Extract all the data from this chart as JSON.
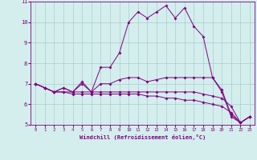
{
  "x": [
    0,
    1,
    2,
    3,
    4,
    5,
    6,
    7,
    8,
    9,
    10,
    11,
    12,
    13,
    14,
    15,
    16,
    17,
    18,
    19,
    20,
    21,
    22,
    23
  ],
  "line1": [
    7.0,
    6.8,
    6.6,
    6.8,
    6.6,
    7.1,
    6.6,
    7.8,
    7.8,
    8.5,
    10.0,
    10.5,
    10.2,
    10.5,
    10.8,
    10.2,
    10.7,
    9.8,
    9.3,
    7.3,
    6.6,
    5.4,
    5.1,
    5.4
  ],
  "line2": [
    7.0,
    6.8,
    6.6,
    6.8,
    6.6,
    7.0,
    6.6,
    7.0,
    7.0,
    7.2,
    7.3,
    7.3,
    7.1,
    7.2,
    7.3,
    7.3,
    7.3,
    7.3,
    7.3,
    7.3,
    6.7,
    5.5,
    5.1,
    5.4
  ],
  "line3": [
    7.0,
    6.8,
    6.6,
    6.6,
    6.6,
    6.6,
    6.6,
    6.6,
    6.6,
    6.6,
    6.6,
    6.6,
    6.6,
    6.6,
    6.6,
    6.6,
    6.6,
    6.6,
    6.5,
    6.4,
    6.3,
    5.9,
    5.1,
    5.4
  ],
  "line4": [
    7.0,
    6.8,
    6.6,
    6.6,
    6.5,
    6.5,
    6.5,
    6.5,
    6.5,
    6.5,
    6.5,
    6.5,
    6.4,
    6.4,
    6.3,
    6.3,
    6.2,
    6.2,
    6.1,
    6.0,
    5.9,
    5.6,
    5.1,
    5.4
  ],
  "line_color": "#800080",
  "bg_color": "#d4eeee",
  "grid_color": "#aacccc",
  "xlabel": "Windchill (Refroidissement éolien,°C)",
  "ylim": [
    5,
    11
  ],
  "xlim": [
    -0.5,
    23.5
  ],
  "yticks": [
    5,
    6,
    7,
    8,
    9,
    10,
    11
  ],
  "xticks": [
    0,
    1,
    2,
    3,
    4,
    5,
    6,
    7,
    8,
    9,
    10,
    11,
    12,
    13,
    14,
    15,
    16,
    17,
    18,
    19,
    20,
    21,
    22,
    23
  ]
}
